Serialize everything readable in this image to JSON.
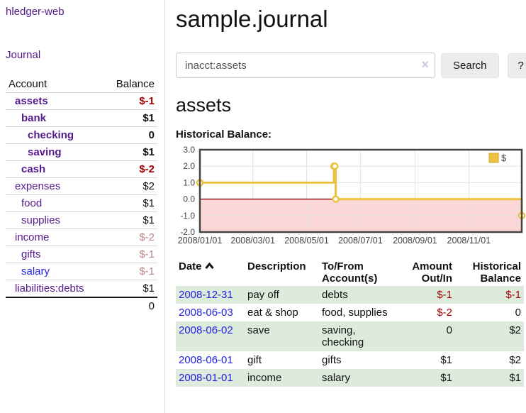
{
  "app": {
    "title": "hledger-web"
  },
  "theme": {
    "link_purple": "#551a8b",
    "link_blue": "#2222dd",
    "negative_red": "#a40000",
    "negative_muted": "#bd8484",
    "row_stripe_green": "#ddebdd",
    "button_bg": "#ececec",
    "border_gray": "#cccccc",
    "series_gold": "#edc240"
  },
  "sidebar": {
    "journal_link": "Journal",
    "accounts_table": {
      "account_header": "Account",
      "balance_header": "Balance",
      "rows": [
        {
          "name": "assets",
          "indent": 1,
          "bold": true,
          "balance": "$-1",
          "balance_style": "negative"
        },
        {
          "name": "bank",
          "indent": 2,
          "bold": true,
          "balance": "$1",
          "balance_style": "normal"
        },
        {
          "name": "checking",
          "indent": 3,
          "bold": true,
          "balance": "0",
          "balance_style": "normal"
        },
        {
          "name": "saving",
          "indent": 3,
          "bold": true,
          "balance": "$1",
          "balance_style": "normal"
        },
        {
          "name": "cash",
          "indent": 2,
          "bold": true,
          "balance": "$-2",
          "balance_style": "negative"
        },
        {
          "name": "expenses",
          "indent": 1,
          "bold": false,
          "balance": "$2",
          "balance_style": "normal"
        },
        {
          "name": "food",
          "indent": 2,
          "bold": false,
          "balance": "$1",
          "balance_style": "normal"
        },
        {
          "name": "supplies",
          "indent": 2,
          "bold": false,
          "balance": "$1",
          "balance_style": "normal"
        },
        {
          "name": "income",
          "indent": 1,
          "bold": false,
          "balance": "$-2",
          "balance_style": "negative-muted"
        },
        {
          "name": "gifts",
          "indent": 2,
          "bold": false,
          "balance": "$-1",
          "balance_style": "negative-muted"
        },
        {
          "name": "salary",
          "indent": 2,
          "bold": false,
          "balance": "$-1",
          "balance_style": "negative-muted",
          "link_style": "blue"
        },
        {
          "name": "liabilities:debts",
          "indent": 1,
          "bold": false,
          "balance": "$1",
          "balance_style": "normal"
        }
      ],
      "total": "0"
    }
  },
  "main": {
    "title": "sample.journal",
    "search": {
      "value": "inacct:assets",
      "clear_icon": "×",
      "button_label": "Search",
      "help_label": "?"
    },
    "section_title": "assets"
  },
  "chart_data": {
    "type": "line",
    "title": "Historical Balance:",
    "steps": true,
    "series": [
      {
        "name": "$",
        "color": "#edc240",
        "points": [
          [
            "2008-01-01",
            1
          ],
          [
            "2008-06-01",
            2
          ],
          [
            "2008-06-02",
            2
          ],
          [
            "2008-06-03",
            0
          ],
          [
            "2008-12-31",
            -1
          ]
        ]
      }
    ],
    "xlim": [
      "2008-01-01",
      "2008-12-31"
    ],
    "ylim": [
      -2,
      3
    ],
    "yticks": [
      3,
      2,
      1,
      0,
      -1,
      -2
    ],
    "ytick_labels": [
      "3.0",
      "2.0",
      "1.0",
      "0.0",
      "-1.0",
      "-2.0"
    ],
    "xticks": [
      "2008-01-01",
      "2008-03-01",
      "2008-05-01",
      "2008-07-01",
      "2008-09-01",
      "2008-11-01"
    ],
    "xtick_labels": [
      "2008/01/01",
      "2008/03/01",
      "2008/05/01",
      "2008/07/01",
      "2008/09/01",
      "2008/11/01"
    ],
    "grid": true,
    "legend_position": "top-right",
    "negative_region_color": "#fbd7d7",
    "zero_line_color": "#8b0000"
  },
  "register": {
    "headers": [
      {
        "line1": "Date",
        "line2": "",
        "align": "left",
        "sorted": "asc"
      },
      {
        "line1": "Description",
        "line2": "",
        "align": "left"
      },
      {
        "line1": "To/From",
        "line2": "Account(s)",
        "align": "left"
      },
      {
        "line1": "Amount",
        "line2": "Out/In",
        "align": "right"
      },
      {
        "line1": "Historical",
        "line2": "Balance",
        "align": "right"
      }
    ],
    "rows": [
      {
        "date": "2008-12-31",
        "description": "pay off",
        "accounts": "debts",
        "amount": "$-1",
        "amount_negative": true,
        "balance": "$-1",
        "balance_negative": true
      },
      {
        "date": "2008-06-03",
        "description": "eat & shop",
        "accounts": "food, supplies",
        "amount": "$-2",
        "amount_negative": true,
        "balance": "0",
        "balance_negative": false
      },
      {
        "date": "2008-06-02",
        "description": "save",
        "accounts": "saving, checking",
        "amount": "0",
        "amount_negative": false,
        "balance": "$2",
        "balance_negative": false
      },
      {
        "date": "2008-06-01",
        "description": "gift",
        "accounts": "gifts",
        "amount": "$1",
        "amount_negative": false,
        "balance": "$2",
        "balance_negative": false
      },
      {
        "date": "2008-01-01",
        "description": "income",
        "accounts": "salary",
        "amount": "$1",
        "amount_negative": false,
        "balance": "$1",
        "balance_negative": false
      }
    ]
  }
}
